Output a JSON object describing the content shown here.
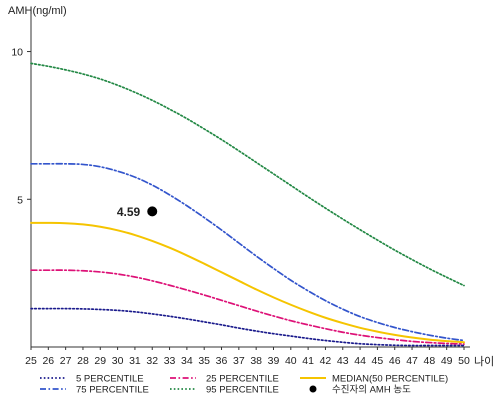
{
  "chart_data": {
    "type": "line",
    "ylabel": "AMH(ng/ml)",
    "xlabel": "나이",
    "x": [
      25,
      26,
      27,
      28,
      29,
      30,
      31,
      32,
      33,
      34,
      35,
      36,
      37,
      38,
      39,
      40,
      41,
      42,
      43,
      44,
      45,
      46,
      47,
      48,
      49,
      50
    ],
    "xlim": [
      25,
      50
    ],
    "ylim": [
      0,
      11
    ],
    "yticks": [
      5,
      10
    ],
    "grid": false,
    "legend_position": "bottom",
    "series": [
      {
        "name": "5 PERCENTILE",
        "color": "#1a1a8c",
        "style": "dotted",
        "values": [
          1.3,
          1.3,
          1.3,
          1.29,
          1.27,
          1.24,
          1.19,
          1.12,
          1.04,
          0.95,
          0.85,
          0.75,
          0.64,
          0.54,
          0.45,
          0.37,
          0.29,
          0.22,
          0.16,
          0.11,
          0.08,
          0.06,
          0.05,
          0.05,
          0.05,
          0.05
        ]
      },
      {
        "name": "75 PERCENTILE",
        "color": "#3355cc",
        "style": "dashdot",
        "values": [
          6.2,
          6.2,
          6.2,
          6.18,
          6.1,
          5.95,
          5.75,
          5.48,
          5.15,
          4.78,
          4.38,
          3.96,
          3.52,
          3.08,
          2.66,
          2.26,
          1.9,
          1.57,
          1.28,
          1.03,
          0.83,
          0.66,
          0.52,
          0.4,
          0.3,
          0.22
        ]
      },
      {
        "name": "25 PERCENTILE",
        "color": "#dd1177",
        "style": "dashdot",
        "values": [
          2.6,
          2.6,
          2.6,
          2.58,
          2.54,
          2.47,
          2.37,
          2.24,
          2.09,
          1.93,
          1.76,
          1.58,
          1.4,
          1.22,
          1.05,
          0.89,
          0.75,
          0.62,
          0.5,
          0.4,
          0.32,
          0.25,
          0.19,
          0.15,
          0.12,
          0.1
        ]
      },
      {
        "name": "95 PERCENTILE",
        "color": "#228844",
        "style": "dotted",
        "values": [
          9.6,
          9.5,
          9.38,
          9.24,
          9.07,
          8.86,
          8.62,
          8.35,
          8.05,
          7.73,
          7.38,
          7.02,
          6.64,
          6.25,
          5.86,
          5.47,
          5.08,
          4.7,
          4.33,
          3.97,
          3.62,
          3.28,
          2.96,
          2.65,
          2.36,
          2.08
        ]
      },
      {
        "name": "MEDIAN(50 PERCENTILE)",
        "color": "#f5c400",
        "style": "solid",
        "values": [
          4.2,
          4.2,
          4.19,
          4.15,
          4.07,
          3.95,
          3.79,
          3.59,
          3.36,
          3.1,
          2.82,
          2.53,
          2.24,
          1.95,
          1.68,
          1.43,
          1.2,
          0.99,
          0.81,
          0.65,
          0.52,
          0.41,
          0.32,
          0.25,
          0.2,
          0.16
        ]
      }
    ],
    "point": {
      "name": "수진자의 AMH 농도",
      "x": 32,
      "y": 4.59,
      "label": "4.59",
      "color": "#000000"
    }
  }
}
